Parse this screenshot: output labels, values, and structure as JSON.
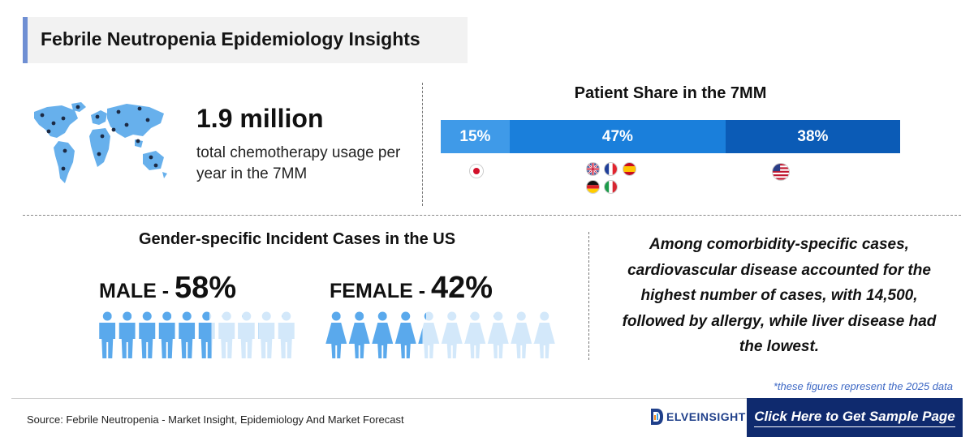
{
  "header": {
    "title": "Febrile Neutropenia Epidemiology Insights"
  },
  "chemo": {
    "value": "1.9 million",
    "description": "total chemotherapy usage per year in the 7MM"
  },
  "patient_share": {
    "title": "Patient Share in the 7MM",
    "segments": [
      {
        "label": "15%",
        "value": 15,
        "color": "#3f9ae8",
        "flags": [
          "japan-flag"
        ]
      },
      {
        "label": "47%",
        "value": 47,
        "color": "#1a7fdb",
        "flags": [
          "uk-flag",
          "france-flag",
          "spain-flag",
          "germany-flag",
          "italy-flag"
        ]
      },
      {
        "label": "38%",
        "value": 38,
        "color": "#0b5bb6",
        "flags": [
          "usa-flag"
        ]
      }
    ]
  },
  "gender": {
    "title": "Gender-specific Incident Cases in the US",
    "male": {
      "word": "MALE - ",
      "pct_label": "58%",
      "value": 58,
      "icon": "male-person-icon"
    },
    "female": {
      "word": "FEMALE - ",
      "pct_label": "42%",
      "value": 42,
      "icon": "female-person-icon"
    }
  },
  "comorbidity": {
    "text": "Among comorbidity-specific cases, cardiovascular disease accounted for the highest number of cases, with 14,500, followed by allergy, while liver disease had the lowest."
  },
  "footnote": "*these figures represent the 2025 data",
  "footer": {
    "source": "Source: Febrile Neutropenia - Market Insight, Epidemiology And Market Forecast",
    "logo_text": "ELVEINSIGHT",
    "cta": "Click Here to Get Sample Page"
  },
  "colors": {
    "accent": "#6f8fd3",
    "figure": "#5aa9ec",
    "figure_faded": "#d3e8fa",
    "cta_bg": "#0f2a6e",
    "footnote": "#3c67c4"
  }
}
